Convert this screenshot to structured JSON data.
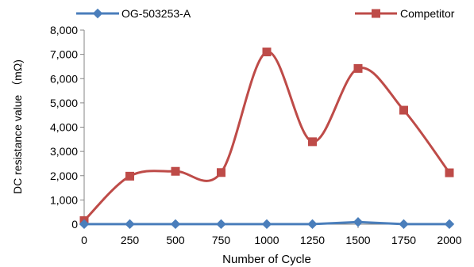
{
  "chart_data": {
    "type": "line",
    "xlabel": "Number of Cycle",
    "ylabel": "DC resistance value （mΩ)",
    "x": [
      0,
      250,
      500,
      750,
      1000,
      1250,
      1500,
      1750,
      2000
    ],
    "x_ticks": [
      "0",
      "250",
      "500",
      "750",
      "1000",
      "1250",
      "1500",
      "1750",
      "2000"
    ],
    "y_ticks": [
      "0",
      "1,000",
      "2,000",
      "3,000",
      "4,000",
      "5,000",
      "6,000",
      "7,000",
      "8,000"
    ],
    "xlim": [
      0,
      2000
    ],
    "ylim": [
      0,
      8000
    ],
    "grid": false,
    "legend_position": "top",
    "series": [
      {
        "name": "OG-503253-A",
        "color": "#4a7ebb",
        "marker": "diamond",
        "smooth": false,
        "values": [
          5,
          5,
          5,
          5,
          5,
          5,
          90,
          5,
          5
        ]
      },
      {
        "name": "Competitor",
        "color": "#be4b48",
        "marker": "square",
        "smooth": true,
        "values": [
          150,
          1980,
          2180,
          2130,
          7100,
          3400,
          6420,
          4700,
          2120
        ]
      }
    ]
  }
}
